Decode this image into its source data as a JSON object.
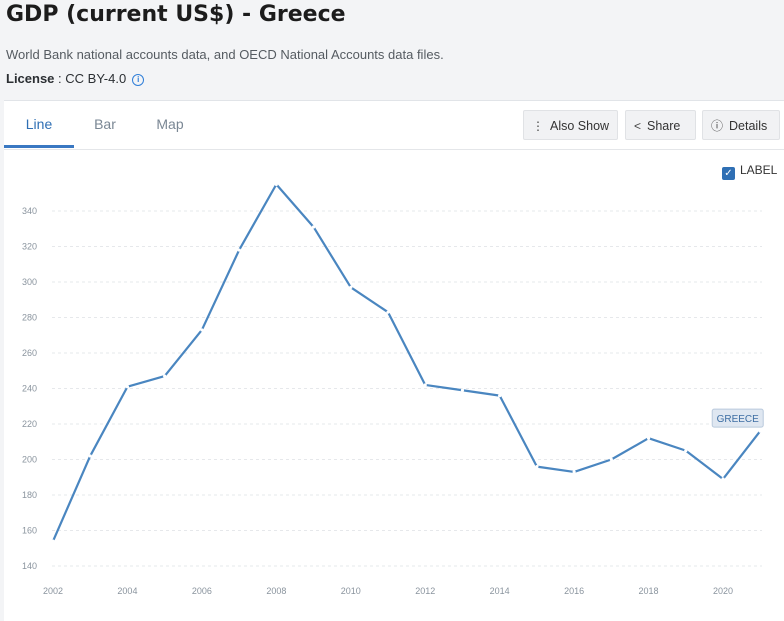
{
  "header": {
    "title": "GDP (current US$) - Greece",
    "subtitle": "World Bank national accounts data, and OECD National Accounts data files.",
    "license_label": "License",
    "license_value": " : CC BY-4.0"
  },
  "tabs": [
    {
      "label": "Line",
      "active": true
    },
    {
      "label": "Bar",
      "active": false
    },
    {
      "label": "Map",
      "active": false
    }
  ],
  "toolbar": {
    "also_show": "Also Show",
    "share": "Share",
    "details": "Details"
  },
  "label_toggle": {
    "text": "LABEL",
    "checked": true
  },
  "chart_data": {
    "type": "line",
    "xlabel": "",
    "ylabel": "",
    "ylim": [
      140,
      355
    ],
    "xlim": [
      2002,
      2021
    ],
    "y_ticks": [
      140,
      160,
      180,
      200,
      220,
      240,
      260,
      280,
      300,
      320,
      340
    ],
    "x_ticks": [
      2002,
      2004,
      2006,
      2008,
      2010,
      2012,
      2014,
      2016,
      2018,
      2020
    ],
    "grid": "horizontal dashed",
    "series": [
      {
        "name": "GREECE",
        "color": "#4a86c0",
        "x": [
          2002,
          2003,
          2004,
          2005,
          2006,
          2007,
          2008,
          2009,
          2010,
          2011,
          2012,
          2013,
          2014,
          2015,
          2016,
          2017,
          2018,
          2019,
          2020,
          2021
        ],
        "values": [
          154,
          202,
          241,
          247,
          273,
          318,
          355,
          331,
          297,
          283,
          242,
          239,
          236,
          196,
          193,
          200,
          212,
          205,
          189,
          216
        ]
      }
    ]
  }
}
